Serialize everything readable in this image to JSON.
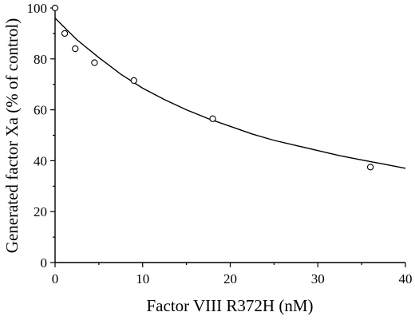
{
  "chart_data": {
    "type": "scatter",
    "title": "",
    "xlabel": "Factor VIII R372H (nM)",
    "ylabel": "Generated factor Xa (% of control)",
    "xlim": [
      0,
      40
    ],
    "ylim": [
      0,
      100
    ],
    "x_ticks": [
      0,
      10,
      20,
      30,
      40
    ],
    "y_ticks": [
      0,
      20,
      40,
      60,
      80,
      100
    ],
    "grid": false,
    "legend": "none",
    "series": [
      {
        "marker": "open-circle",
        "points": [
          {
            "x": 0,
            "y": 100
          },
          {
            "x": 1.1,
            "y": 90
          },
          {
            "x": 2.3,
            "y": 84
          },
          {
            "x": 4.5,
            "y": 78.5
          },
          {
            "x": 9,
            "y": 71.5
          },
          {
            "x": 18,
            "y": 56.5
          },
          {
            "x": 36,
            "y": 37.5
          }
        ]
      }
    ],
    "fit_curve": {
      "style": "solid",
      "points": [
        {
          "x": 0,
          "y": 96
        },
        {
          "x": 2.5,
          "y": 87.5
        },
        {
          "x": 5,
          "y": 80.5
        },
        {
          "x": 7.5,
          "y": 74
        },
        {
          "x": 10,
          "y": 68.5
        },
        {
          "x": 12.5,
          "y": 64
        },
        {
          "x": 15,
          "y": 60
        },
        {
          "x": 17.5,
          "y": 56.5
        },
        {
          "x": 20,
          "y": 53.5
        },
        {
          "x": 22.5,
          "y": 50.5
        },
        {
          "x": 25,
          "y": 48
        },
        {
          "x": 27.5,
          "y": 46
        },
        {
          "x": 30,
          "y": 44
        },
        {
          "x": 32.5,
          "y": 42
        },
        {
          "x": 35,
          "y": 40.3
        },
        {
          "x": 37.5,
          "y": 38.7
        },
        {
          "x": 40,
          "y": 37
        }
      ]
    }
  }
}
